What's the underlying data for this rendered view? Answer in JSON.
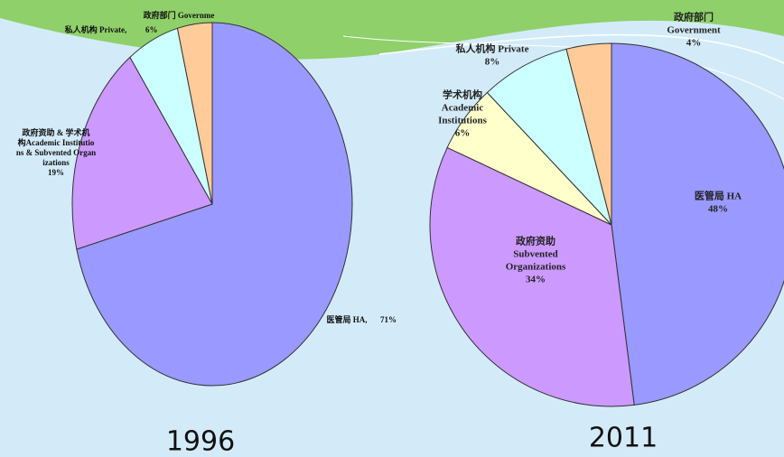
{
  "chart_data": [
    {
      "type": "pie",
      "title": "1996",
      "categories": [
        [
          "医管局 HA,"
        ],
        [
          "政府资助 & 学术机",
          "构Academic Institutio",
          "ns & Subvented Organ",
          "izations"
        ],
        [
          "私人机构 Private,"
        ],
        [
          "政府部门 Governme"
        ]
      ],
      "values": [
        71,
        19,
        6,
        4
      ],
      "value_labels": [
        "71%",
        "19%",
        "6%",
        null
      ],
      "colors": [
        "#9999ff",
        "#cc99ff",
        "#ccffff",
        "#ffcc99"
      ]
    },
    {
      "type": "pie",
      "title": "2011",
      "categories": [
        [
          "医管局 HA"
        ],
        [
          "政府资助",
          "Subvented",
          "Organizations"
        ],
        [
          "学术机构",
          "Academic",
          "Institutions"
        ],
        [
          "私人机构 Private"
        ],
        [
          "政府部门",
          "Government"
        ]
      ],
      "values": [
        48,
        34,
        6,
        8,
        4
      ],
      "value_labels": [
        "48%",
        "34%",
        "6%",
        "8%",
        "4%"
      ],
      "colors": [
        "#9999ff",
        "#cc99ff",
        "#ffffcc",
        "#ccffff",
        "#ffcc99"
      ]
    }
  ]
}
